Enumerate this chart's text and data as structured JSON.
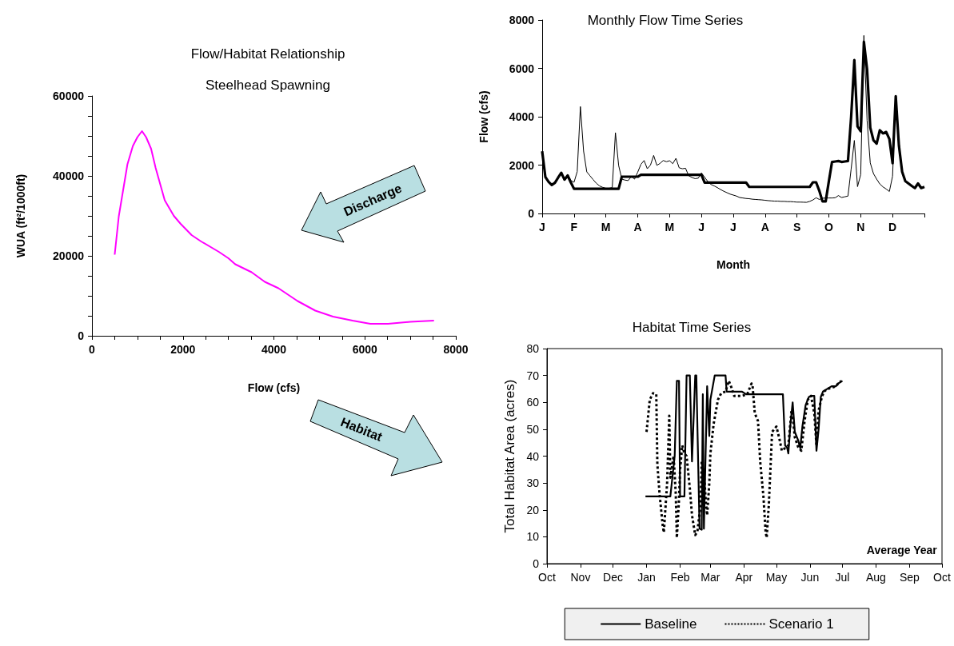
{
  "chart_data": [
    {
      "type": "line",
      "title": "Flow/Habitat Relationship",
      "subtitle": "Steelhead Spawning",
      "xlabel": "Flow (cfs)",
      "ylabel": "WUA (ft²/1000ft)",
      "annotations": [
        "Discharge",
        "Habitat"
      ],
      "xlim": [
        0,
        8000
      ],
      "xticks": [
        0,
        {
          "value": 500,
          "label": null
        },
        {
          "value": 1000,
          "label": null
        },
        {
          "value": 1500,
          "label": null
        },
        2000,
        {
          "value": 2500,
          "label": null
        },
        {
          "value": 3000,
          "label": null
        },
        {
          "value": 3500,
          "label": null
        },
        4000,
        {
          "value": 4500,
          "label": null
        },
        {
          "value": 5000,
          "label": null
        },
        {
          "value": 5500,
          "label": null
        },
        6000,
        {
          "value": 6500,
          "label": null
        },
        {
          "value": 7000,
          "label": null
        },
        {
          "value": 7500,
          "label": null
        },
        8000
      ],
      "ylim": [
        0,
        60000
      ],
      "yticks": [
        0,
        {
          "value": 5000,
          "label": null
        },
        {
          "value": 10000,
          "label": null
        },
        {
          "value": 15000,
          "label": null
        },
        20000,
        {
          "value": 25000,
          "label": null
        },
        {
          "value": 30000,
          "label": null
        },
        {
          "value": 35000,
          "label": null
        },
        40000,
        {
          "value": 45000,
          "label": null
        },
        {
          "value": 50000,
          "label": null
        },
        {
          "value": 55000,
          "label": null
        },
        60000
      ],
      "grid": false,
      "legend": false,
      "series": [
        {
          "color": "#ff00ff",
          "x": [
            500,
            590,
            780,
            900,
            1000,
            1100,
            1190,
            1300,
            1400,
            1600,
            1800,
            1950,
            2190,
            2400,
            2790,
            3000,
            3150,
            3510,
            3800,
            4100,
            4520,
            4910,
            5300,
            5730,
            6120,
            6510,
            7000,
            7520
          ],
          "values": [
            20300,
            29900,
            42900,
            47500,
            49700,
            51200,
            49700,
            46800,
            42000,
            33900,
            30000,
            28000,
            25200,
            23600,
            21000,
            19400,
            17900,
            15900,
            13500,
            11900,
            8700,
            6300,
            4800,
            3800,
            3000,
            3000,
            3500,
            3800
          ]
        }
      ]
    },
    {
      "type": "line",
      "title": "Monthly Flow Time Series",
      "xlabel": "Month",
      "ylabel": "Flow (cfs)",
      "categories": [
        "J",
        null,
        null,
        null,
        null,
        null,
        null,
        null,
        null,
        null,
        "F",
        null,
        null,
        null,
        null,
        null,
        null,
        null,
        null,
        null,
        "M",
        null,
        null,
        null,
        null,
        null,
        null,
        null,
        null,
        null,
        "A",
        null,
        null,
        null,
        null,
        null,
        null,
        null,
        null,
        null,
        "M",
        null,
        null,
        null,
        null,
        null,
        null,
        null,
        null,
        null,
        "J",
        null,
        null,
        null,
        null,
        null,
        null,
        null,
        null,
        null,
        "J",
        null,
        null,
        null,
        null,
        null,
        null,
        null,
        null,
        null,
        "A",
        null,
        null,
        null,
        null,
        null,
        null,
        null,
        null,
        null,
        "S",
        null,
        null,
        null,
        null,
        null,
        null,
        null,
        null,
        null,
        "O",
        null,
        null,
        null,
        null,
        null,
        null,
        null,
        null,
        null,
        "N",
        null,
        null,
        null,
        null,
        null,
        null,
        null,
        null,
        null,
        "D",
        null,
        null,
        null,
        null,
        null,
        null,
        null,
        null,
        null,
        null
      ],
      "ylim": [
        0,
        8000
      ],
      "yticks": [
        0,
        2000,
        4000,
        6000,
        8000
      ],
      "grid": false,
      "legend": false,
      "series": [
        {
          "color": "#000000",
          "values": [
            2570,
            1510,
            1310,
            1180,
            1270,
            1480,
            1680,
            1400,
            1570,
            1280,
            1020,
            1020,
            1020,
            1020,
            1020,
            1020,
            1020,
            1020,
            1020,
            1020,
            1020,
            1020,
            1020,
            1020,
            1020,
            1520,
            1520,
            1520,
            1520,
            1520,
            1520,
            1600,
            1600,
            1600,
            1600,
            1600,
            1600,
            1600,
            1600,
            1600,
            1600,
            1600,
            1600,
            1600,
            1600,
            1600,
            1600,
            1600,
            1600,
            1600,
            1600,
            1280,
            1280,
            1280,
            1280,
            1280,
            1280,
            1280,
            1280,
            1280,
            1280,
            1280,
            1280,
            1280,
            1280,
            1100,
            1100,
            1100,
            1100,
            1100,
            1100,
            1100,
            1100,
            1100,
            1100,
            1100,
            1100,
            1100,
            1100,
            1100,
            1100,
            1100,
            1100,
            1100,
            1100,
            1290,
            1290,
            940,
            500,
            500,
            1330,
            2130,
            2150,
            2170,
            2130,
            2150,
            2170,
            4000,
            6340,
            3600,
            3400,
            7100,
            5960,
            3550,
            3030,
            2890,
            3440,
            3310,
            3370,
            3080,
            2080,
            4850,
            2800,
            1730,
            1340,
            1240,
            1140,
            1050,
            1240,
            1050,
            1100
          ]
        },
        {
          "color": "#000000",
          "values": [
            2570,
            1510,
            1310,
            1180,
            1270,
            1480,
            1680,
            1400,
            1620,
            1360,
            1290,
            1730,
            4420,
            2580,
            1720,
            1560,
            1400,
            1250,
            1140,
            1080,
            1040,
            1040,
            1070,
            3340,
            1990,
            1420,
            1380,
            1360,
            1530,
            1420,
            1710,
            2030,
            2190,
            1850,
            2000,
            2400,
            1990,
            2070,
            2190,
            2140,
            2180,
            2060,
            2280,
            1890,
            1850,
            1870,
            1560,
            1490,
            1440,
            1460,
            1680,
            1500,
            1320,
            1200,
            1140,
            1070,
            990,
            920,
            860,
            800,
            760,
            720,
            660,
            640,
            620,
            610,
            590,
            580,
            570,
            560,
            545,
            530,
            520,
            510,
            510,
            500,
            500,
            490,
            490,
            480,
            470,
            470,
            465,
            460,
            500,
            560,
            650,
            580,
            630,
            640,
            640,
            640,
            650,
            740,
            660,
            690,
            720,
            1840,
            3020,
            1110,
            1610,
            7360,
            3850,
            2090,
            1650,
            1420,
            1220,
            1100,
            1010,
            910,
            1540,
            4800,
            2800,
            1730,
            1340,
            1240,
            1140,
            1050,
            1240,
            1050,
            1100
          ]
        }
      ]
    },
    {
      "type": "line",
      "title": "Habitat Time Series",
      "ylabel": "Total Habitat Area (acres)",
      "annotations": [
        "Average Year"
      ],
      "xlim": [
        "2000-10-01",
        "2001-10-01"
      ],
      "xticks": [
        {
          "value": "2000-10-01",
          "label": "Oct"
        },
        {
          "value": "2000-11-01",
          "label": "Nov"
        },
        {
          "value": "2000-12-01",
          "label": "Dec"
        },
        {
          "value": "2001-01-01",
          "label": "Jan"
        },
        {
          "value": "2001-02-01",
          "label": "Feb"
        },
        {
          "value": "2001-03-01",
          "label": "Mar"
        },
        {
          "value": "2001-04-01",
          "label": "Apr"
        },
        {
          "value": "2001-05-01",
          "label": "May"
        },
        {
          "value": "2001-06-01",
          "label": "Jun"
        },
        {
          "value": "2001-07-01",
          "label": "Jul"
        },
        {
          "value": "2001-08-01",
          "label": "Aug"
        },
        {
          "value": "2001-09-01",
          "label": "Sep"
        },
        {
          "value": "2001-10-01",
          "label": "Oct"
        }
      ],
      "ylim": [
        0,
        80
      ],
      "yticks": [
        0,
        10,
        20,
        30,
        40,
        50,
        60,
        70,
        80
      ],
      "grid": false,
      "legend": "bottom",
      "series": [
        {
          "name": "Baseline",
          "color": "#000000",
          "line_style": "solid",
          "x": [
            "2000-12-31",
            "2001-01-23",
            "2001-01-27",
            "2001-01-29",
            "2001-01-31",
            "2001-02-01",
            "2001-02-05",
            "2001-02-07",
            "2001-02-10",
            "2001-02-12",
            "2001-02-15",
            "2001-02-16",
            "2001-02-19",
            "2001-02-21",
            "2001-02-22",
            "2001-02-23",
            "2001-02-26",
            "2001-02-28",
            "2001-03-01",
            "2001-03-05",
            "2001-03-15",
            "2001-03-16",
            "2001-03-30",
            "2001-04-03",
            "2001-05-07",
            "2001-05-09",
            "2001-05-11",
            "2001-05-12",
            "2001-05-14",
            "2001-05-16",
            "2001-05-18",
            "2001-05-21",
            "2001-05-23",
            "2001-05-25",
            "2001-05-28",
            "2001-05-31",
            "2001-06-02",
            "2001-06-05",
            "2001-06-07",
            "2001-06-09",
            "2001-06-11",
            "2001-06-13",
            "2001-06-17",
            "2001-06-21",
            "2001-06-25",
            "2001-06-27",
            "2001-07-01"
          ],
          "values": [
            25,
            25,
            40,
            68,
            68,
            25,
            25,
            70,
            70,
            38,
            70,
            70,
            13,
            12.6,
            63,
            13,
            66,
            47.5,
            61,
            70,
            70,
            64,
            64,
            63,
            63,
            44,
            43,
            41,
            52,
            60,
            49,
            46,
            43,
            51,
            59,
            62,
            62.4,
            62.4,
            42,
            50,
            62,
            64,
            65,
            66,
            66,
            67,
            68
          ]
        },
        {
          "name": "Scenario 1",
          "color": "#000000",
          "line_style": "dotted",
          "x": [
            "2001-01-01",
            "2001-01-04",
            "2001-01-07",
            "2001-01-10",
            "2001-01-11",
            "2001-01-13",
            "2001-01-16",
            "2001-01-17",
            "2001-01-20",
            "2001-01-22",
            "2001-01-23",
            "2001-01-26",
            "2001-01-28",
            "2001-01-29",
            "2001-01-31",
            "2001-02-01",
            "2001-02-03",
            "2001-02-05",
            "2001-02-07",
            "2001-02-10",
            "2001-02-12",
            "2001-02-14",
            "2001-02-15",
            "2001-02-17",
            "2001-02-20",
            "2001-02-21",
            "2001-02-23",
            "2001-02-25",
            "2001-02-26",
            "2001-02-28",
            "2001-03-01",
            "2001-03-04",
            "2001-03-08",
            "2001-03-11",
            "2001-03-15",
            "2001-03-18",
            "2001-03-20",
            "2001-03-23",
            "2001-03-30",
            "2001-04-04",
            "2001-04-08",
            "2001-04-09",
            "2001-04-11",
            "2001-04-14",
            "2001-04-16",
            "2001-04-19",
            "2001-04-21",
            "2001-04-22",
            "2001-04-24",
            "2001-04-26",
            "2001-04-27",
            "2001-05-01",
            "2001-05-04",
            "2001-05-06",
            "2001-05-09",
            "2001-05-12",
            "2001-05-15",
            "2001-05-16",
            "2001-05-18",
            "2001-05-21",
            "2001-05-24",
            "2001-05-27",
            "2001-05-30",
            "2001-06-02",
            "2001-06-05",
            "2001-06-07",
            "2001-06-09",
            "2001-06-12",
            "2001-06-14",
            "2001-06-17",
            "2001-06-21",
            "2001-06-25",
            "2001-06-27",
            "2001-06-30"
          ],
          "values": [
            49,
            61,
            63.4,
            63,
            37,
            26,
            14,
            11.6,
            30,
            55,
            32,
            40,
            26,
            9.6,
            24,
            35,
            44,
            41,
            40,
            28,
            18,
            13,
            10.6,
            12,
            22,
            38,
            34,
            22,
            18,
            30,
            41,
            52,
            61,
            63.4,
            64,
            68,
            66,
            62.4,
            62.4,
            63,
            67,
            66,
            56,
            53,
            38,
            25,
            12,
            9.6,
            22,
            40,
            49,
            51,
            46,
            42,
            43,
            44,
            57,
            55,
            47,
            43.5,
            42,
            53,
            61,
            62.4,
            56,
            44,
            57,
            62,
            64,
            65,
            65.4,
            66,
            67,
            68
          ]
        }
      ]
    }
  ]
}
